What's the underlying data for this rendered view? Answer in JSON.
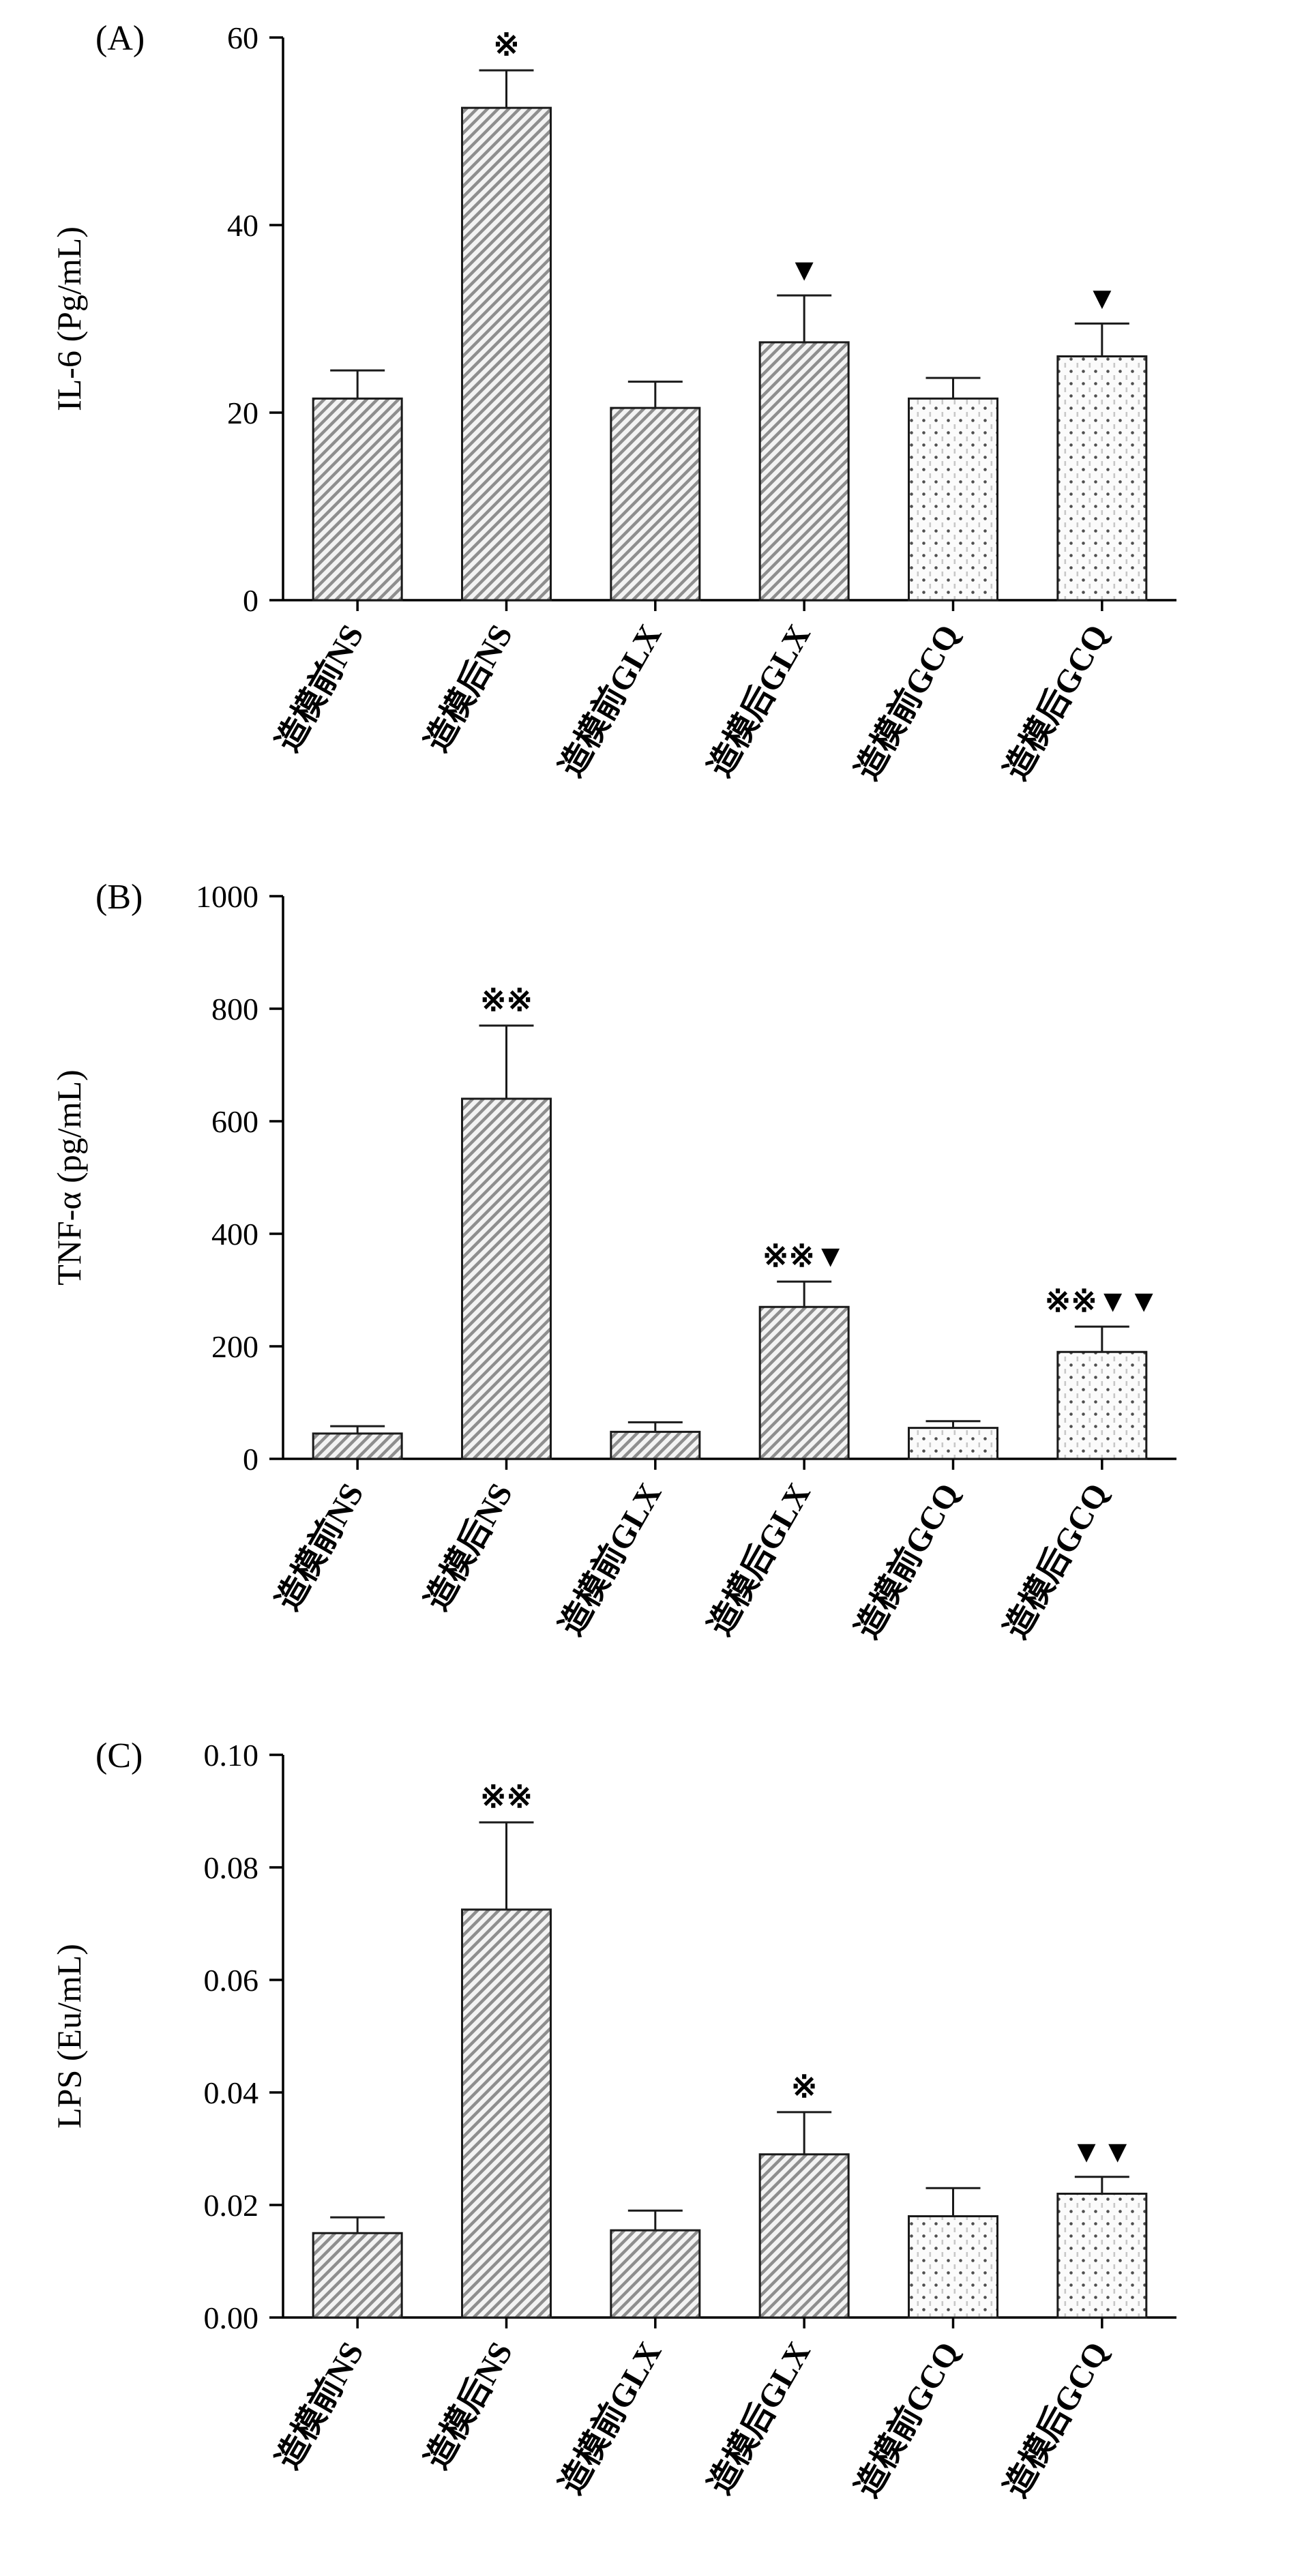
{
  "chart_data": [
    {
      "type": "bar",
      "panel_label": "(A)",
      "title": "",
      "ylabel": "IL-6 (Pg/mL)",
      "xlabel": "",
      "categories": [
        "造模前NS",
        "造模后NS",
        "造模前GLX",
        "造模后GLX",
        "造模前GCQ",
        "造模后GCQ"
      ],
      "values": [
        21.5,
        52.5,
        20.5,
        27.5,
        21.5,
        26
      ],
      "errors": [
        3,
        4,
        2.8,
        5,
        2.2,
        3.5
      ],
      "annotations": [
        "",
        "※",
        "",
        "▼",
        "",
        "▼"
      ],
      "ylim": [
        0,
        60
      ],
      "yticks": [
        0,
        20,
        40,
        60
      ],
      "ytick_labels": [
        "0",
        "20",
        "40",
        "60"
      ],
      "bar_patterns": [
        "diagonal",
        "diagonal",
        "diagonal",
        "diagonal",
        "dots",
        "dots"
      ],
      "grid": false,
      "legend": "none"
    },
    {
      "type": "bar",
      "panel_label": "(B)",
      "title": "",
      "ylabel": "TNF-α (pg/mL)",
      "xlabel": "",
      "categories": [
        "造模前NS",
        "造模后NS",
        "造模前GLX",
        "造模后GLX",
        "造模前GCQ",
        "造模后GCQ"
      ],
      "values": [
        45,
        640,
        48,
        270,
        55,
        190
      ],
      "errors": [
        13,
        130,
        17,
        45,
        12,
        45
      ],
      "annotations": [
        "",
        "※※",
        "",
        "※※▼",
        "",
        "※※▼▼"
      ],
      "ylim": [
        0,
        1000
      ],
      "yticks": [
        0,
        200,
        400,
        600,
        800,
        1000
      ],
      "ytick_labels": [
        "0",
        "200",
        "400",
        "600",
        "800",
        "1000"
      ],
      "bar_patterns": [
        "diagonal",
        "diagonal",
        "diagonal",
        "diagonal",
        "dots",
        "dots"
      ],
      "grid": false,
      "legend": "none"
    },
    {
      "type": "bar",
      "panel_label": "(C)",
      "title": "",
      "ylabel": "LPS (Eu/mL)",
      "xlabel": "",
      "categories": [
        "造模前NS",
        "造模后NS",
        "造模前GLX",
        "造模后GLX",
        "造模前GCQ",
        "造模后GCQ"
      ],
      "values": [
        0.015,
        0.0725,
        0.0155,
        0.029,
        0.018,
        0.022
      ],
      "errors": [
        0.0028,
        0.0155,
        0.0035,
        0.0075,
        0.005,
        0.003
      ],
      "annotations": [
        "",
        "※※",
        "",
        "※",
        "",
        "▼▼"
      ],
      "ylim": [
        0,
        0.1
      ],
      "yticks": [
        0,
        0.02,
        0.04,
        0.06,
        0.08,
        0.1
      ],
      "ytick_labels": [
        "0.00",
        "0.02",
        "0.04",
        "0.06",
        "0.08",
        "0.10"
      ],
      "bar_patterns": [
        "diagonal",
        "diagonal",
        "diagonal",
        "diagonal",
        "dots",
        "dots"
      ],
      "grid": false,
      "legend": "none"
    }
  ],
  "colors": {
    "axis": "#000000",
    "bar_stroke": "#1a1a1a",
    "hatch_stripe": "#8e8e8e",
    "hatch_bg": "#f3f3f3",
    "dot_dark": "#4f4f4f",
    "dot_light": "#c8c8c8",
    "dots_bg": "#fbfbfb"
  }
}
